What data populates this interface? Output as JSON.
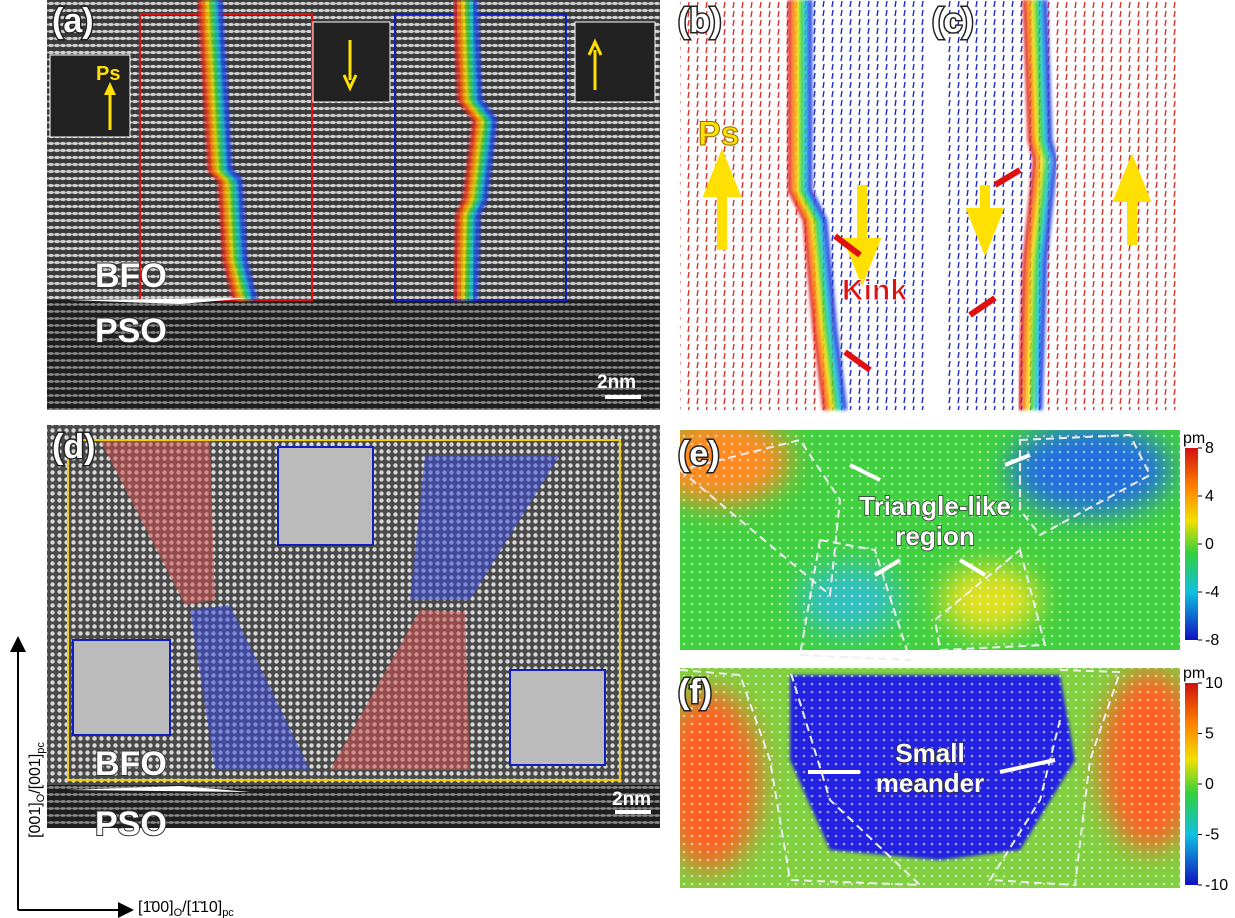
{
  "panels": {
    "a": {
      "label": "(a)",
      "inset_label": "Ps",
      "materials": [
        "BFO",
        "PSO"
      ],
      "scale_bar": "2nm"
    },
    "b": {
      "label": "(b)",
      "polarization": "Ps",
      "annotation": "Kink"
    },
    "c": {
      "label": "(c)"
    },
    "d": {
      "label": "(d)",
      "materials": [
        "BFO",
        "PSO"
      ],
      "scale_bar": "2nm"
    },
    "e": {
      "label": "(e)",
      "annotation": [
        "Triangle-like",
        "region"
      ],
      "colorbar": {
        "unit": "pm",
        "ticks": [
          8,
          4,
          0,
          -4,
          -8
        ]
      }
    },
    "f": {
      "label": "(f)",
      "annotation": [
        "Small",
        "meander"
      ],
      "colorbar": {
        "unit": "pm",
        "ticks": [
          10,
          5,
          0,
          -5,
          -10
        ]
      }
    }
  },
  "axes": {
    "vertical": {
      "main1": "[001]",
      "sub1": "O",
      "main2": "/[001]",
      "sub2": "pc"
    },
    "horizontal": {
      "main1": "[1̄00]",
      "sub1": "O",
      "main2": "/[1̄10]",
      "sub2": "pc"
    }
  }
}
